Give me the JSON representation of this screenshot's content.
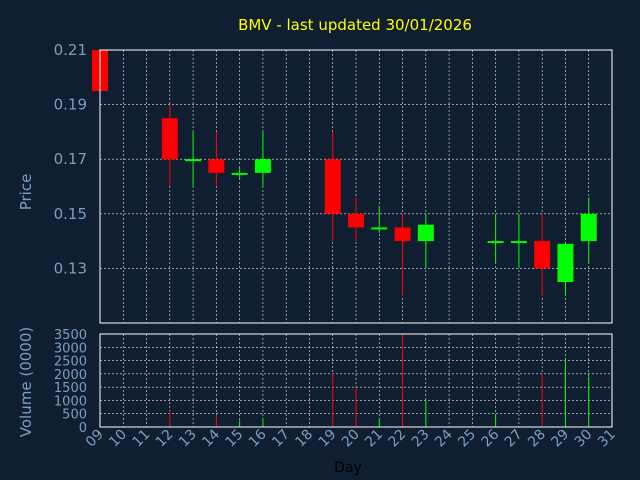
{
  "chart_data": {
    "type": "candlestick",
    "title": "BMV - last updated 30/01/2026",
    "price_panel": {
      "ylabel": "Price",
      "ylim": [
        0.11,
        0.21
      ],
      "yticks": [
        "0.21",
        "0.19",
        "0.17",
        "0.15",
        "0.13"
      ],
      "ytick_values": [
        0.21,
        0.19,
        0.17,
        0.15,
        0.13
      ]
    },
    "volume_panel": {
      "ylabel": "Volume (0000)",
      "ylim": [
        0,
        3500
      ],
      "yticks": [
        "3500",
        "3000",
        "2500",
        "2000",
        "1500",
        "1000",
        "500",
        "0"
      ],
      "ytick_values": [
        3500,
        3000,
        2500,
        2000,
        1500,
        1000,
        500,
        0
      ]
    },
    "xlabel": "Day",
    "x_days": [
      "09",
      "10",
      "11",
      "12",
      "13",
      "14",
      "15",
      "16",
      "17",
      "18",
      "19",
      "20",
      "21",
      "22",
      "23",
      "24",
      "25",
      "26",
      "27",
      "28",
      "29",
      "30",
      "31"
    ],
    "grid": true,
    "colors": {
      "up": "#00ff00",
      "down": "#ff0000",
      "grid": "#ffffff",
      "axis": "#ffffff",
      "background": "#0f1e30",
      "title": "#ffff00",
      "text": "#7d9ec0"
    },
    "candles": [
      {
        "day": "09",
        "open": 0.21,
        "high": 0.21,
        "low": 0.195,
        "close": 0.195,
        "volume": 0
      },
      {
        "day": "12",
        "open": 0.185,
        "high": 0.19,
        "low": 0.16,
        "close": 0.17,
        "volume": 600
      },
      {
        "day": "13",
        "open": 0.17,
        "high": 0.18,
        "low": 0.16,
        "close": 0.17,
        "volume": 0
      },
      {
        "day": "14",
        "open": 0.17,
        "high": 0.18,
        "low": 0.16,
        "close": 0.165,
        "volume": 450
      },
      {
        "day": "15",
        "open": 0.165,
        "high": 0.167,
        "low": 0.163,
        "close": 0.165,
        "volume": 250
      },
      {
        "day": "16",
        "open": 0.165,
        "high": 0.18,
        "low": 0.16,
        "close": 0.17,
        "volume": 350
      },
      {
        "day": "19",
        "open": 0.17,
        "high": 0.18,
        "low": 0.14,
        "close": 0.15,
        "volume": 2000
      },
      {
        "day": "20",
        "open": 0.15,
        "high": 0.156,
        "low": 0.14,
        "close": 0.145,
        "volume": 1500
      },
      {
        "day": "21",
        "open": 0.145,
        "high": 0.153,
        "low": 0.143,
        "close": 0.145,
        "volume": 300
      },
      {
        "day": "22",
        "open": 0.145,
        "high": 0.15,
        "low": 0.12,
        "close": 0.14,
        "volume": 3500
      },
      {
        "day": "23",
        "open": 0.14,
        "high": 0.15,
        "low": 0.13,
        "close": 0.146,
        "volume": 1000
      },
      {
        "day": "26",
        "open": 0.14,
        "high": 0.15,
        "low": 0.132,
        "close": 0.14,
        "volume": 500
      },
      {
        "day": "27",
        "open": 0.14,
        "high": 0.15,
        "low": 0.13,
        "close": 0.14,
        "volume": 0
      },
      {
        "day": "28",
        "open": 0.14,
        "high": 0.15,
        "low": 0.12,
        "close": 0.13,
        "volume": 2000
      },
      {
        "day": "29",
        "open": 0.125,
        "high": 0.139,
        "low": 0.12,
        "close": 0.139,
        "volume": 2500
      },
      {
        "day": "30",
        "open": 0.14,
        "high": 0.156,
        "low": 0.132,
        "close": 0.15,
        "volume": 1900
      }
    ]
  }
}
